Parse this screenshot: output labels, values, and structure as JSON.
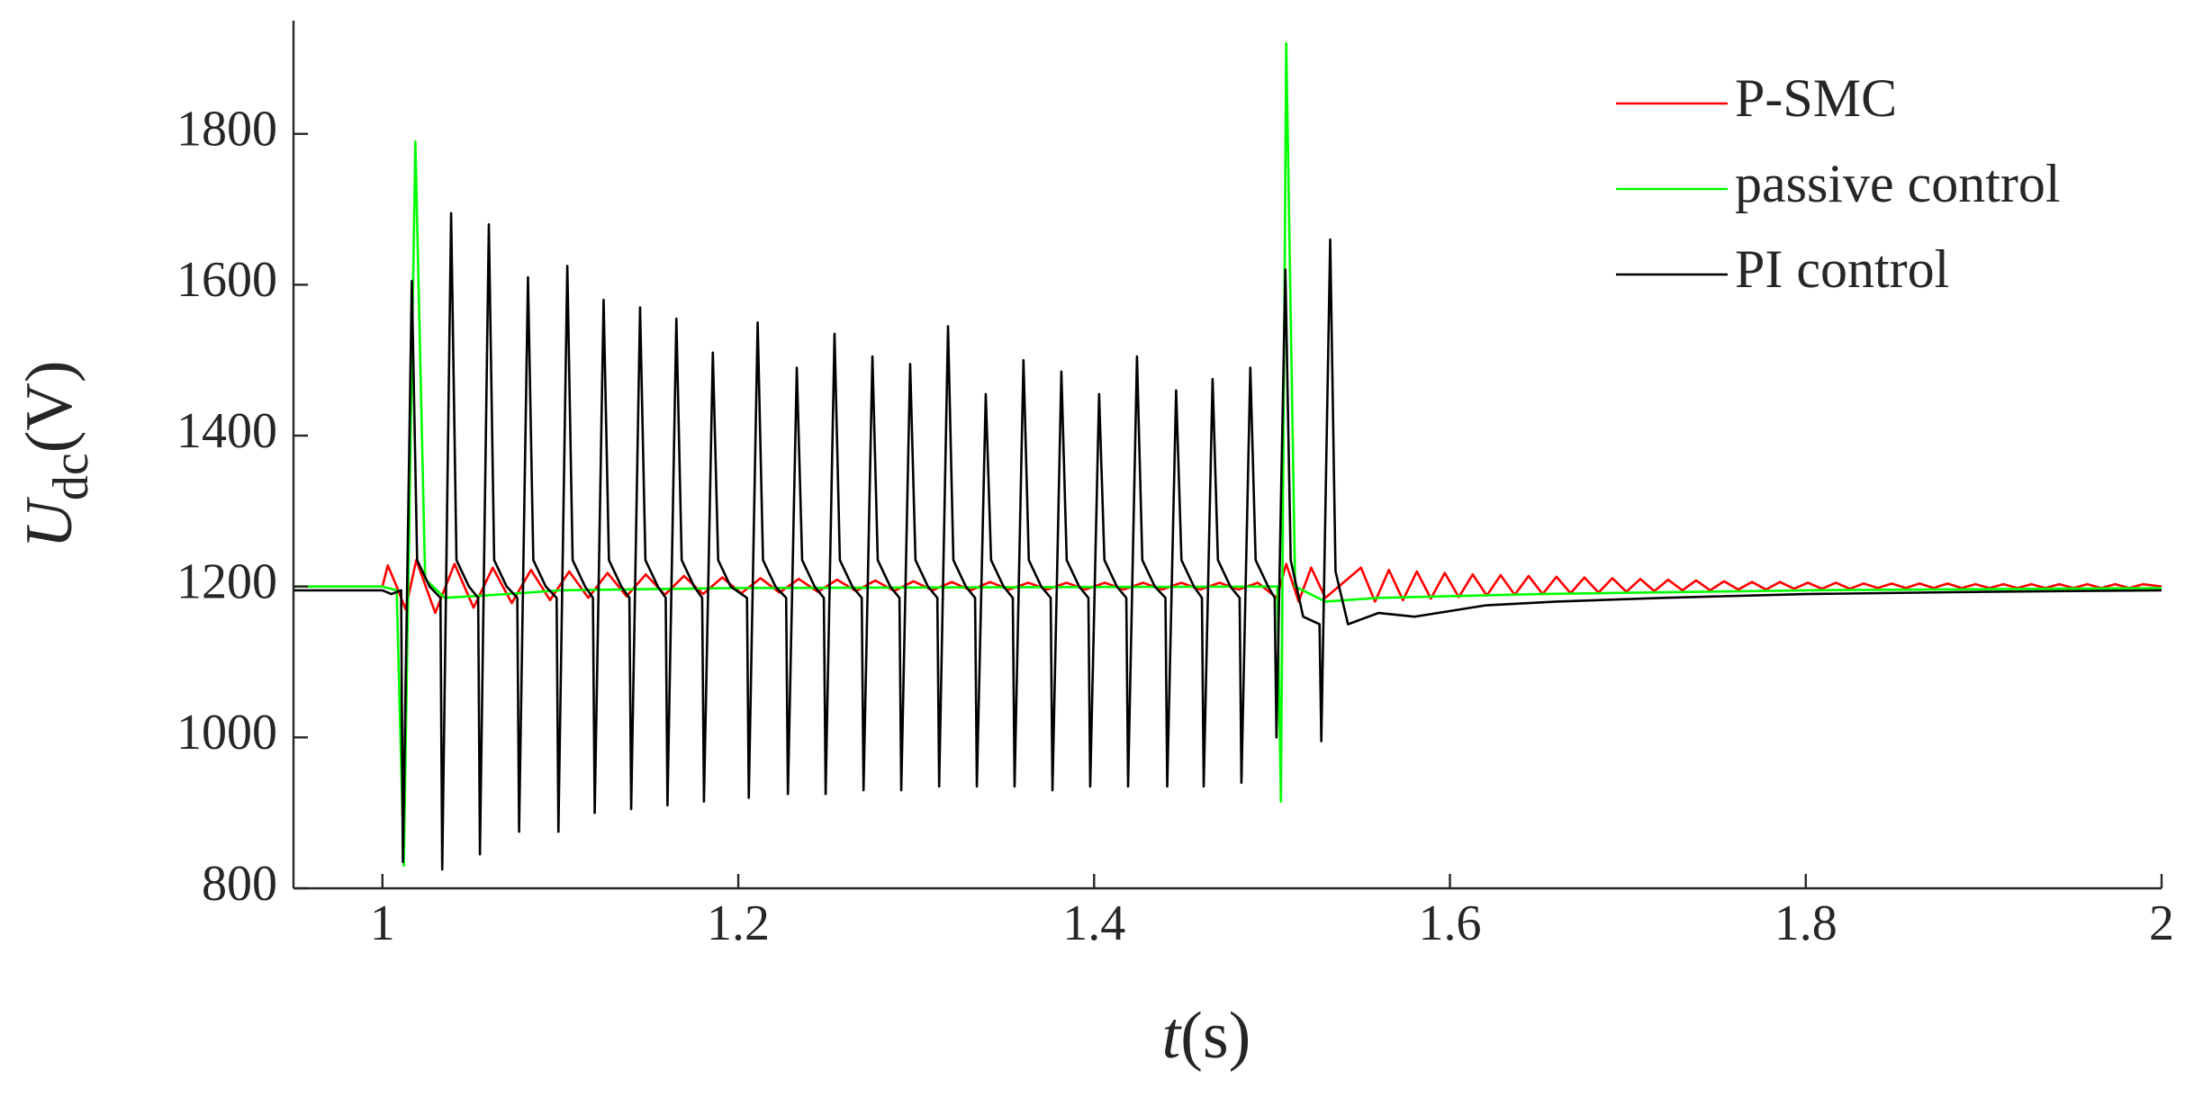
{
  "chart_data": {
    "type": "line",
    "xlabel": {
      "symbol": "t",
      "unit": "(s)"
    },
    "ylabel": {
      "symbol": "U",
      "subscript": "dc",
      "unit": "(V)"
    },
    "xlim": [
      0.95,
      2
    ],
    "ylim": [
      800,
      1950
    ],
    "xticks": [
      1,
      1.2,
      1.4,
      1.6,
      1.8,
      2
    ],
    "yticks": [
      800,
      1000,
      1200,
      1400,
      1600,
      1800
    ],
    "grid": false,
    "legend": "upper right",
    "series": [
      {
        "name": "P-SMC",
        "color": "#ff0000",
        "x": [
          0.95,
          1.0,
          1.003,
          1.008,
          1.013,
          1.019,
          1.0297,
          1.0405,
          1.0512,
          1.062,
          1.0727,
          1.0835,
          1.0942,
          1.105,
          1.1157,
          1.1265,
          1.1372,
          1.148,
          1.1587,
          1.1695,
          1.1802,
          1.191,
          1.2017,
          1.2125,
          1.2232,
          1.234,
          1.2447,
          1.2555,
          1.2662,
          1.277,
          1.2877,
          1.2985,
          1.3092,
          1.32,
          1.3307,
          1.3415,
          1.3522,
          1.363,
          1.3737,
          1.3845,
          1.3952,
          1.406,
          1.4167,
          1.4275,
          1.4382,
          1.449,
          1.4597,
          1.4705,
          1.4812,
          1.492,
          1.5027,
          1.508,
          1.515,
          1.522,
          1.53,
          1.55,
          1.5579,
          1.5657,
          1.5736,
          1.5814,
          1.5893,
          1.5971,
          1.605,
          1.6128,
          1.6207,
          1.6285,
          1.6364,
          1.6442,
          1.6521,
          1.6599,
          1.6678,
          1.6756,
          1.6835,
          1.6913,
          1.6992,
          1.707,
          1.7149,
          1.7227,
          1.7306,
          1.7384,
          1.7463,
          1.7541,
          1.762,
          1.7698,
          1.7777,
          1.7855,
          1.7934,
          1.8012,
          1.8091,
          1.8169,
          1.8248,
          1.8326,
          1.8405,
          1.8483,
          1.8562,
          1.864,
          1.8719,
          1.8797,
          1.8876,
          1.8954,
          1.9033,
          1.9111,
          1.919,
          1.9268,
          1.9347,
          1.9425,
          1.9504,
          1.9582,
          1.9661,
          1.9739,
          1.9818,
          1.9896,
          2.0
        ],
        "values": [
          1200,
          1200,
          1228,
          1200,
          1170,
          1235,
          1165,
          1230,
          1172,
          1225,
          1178,
          1222,
          1182,
          1220,
          1185,
          1218,
          1187,
          1216,
          1189,
          1214,
          1190,
          1212,
          1191,
          1211,
          1192,
          1210,
          1193,
          1209,
          1194,
          1208,
          1194,
          1207,
          1195,
          1206,
          1195,
          1206,
          1196,
          1205,
          1196,
          1205,
          1196,
          1205,
          1196,
          1205,
          1196,
          1205,
          1196,
          1205,
          1196,
          1205,
          1185,
          1230,
          1180,
          1225,
          1185,
          1225,
          1180,
          1222,
          1182,
          1220,
          1184,
          1218,
          1186,
          1216,
          1188,
          1215,
          1189,
          1214,
          1190,
          1213,
          1191,
          1212,
          1192,
          1211,
          1193,
          1210,
          1194,
          1209,
          1195,
          1208,
          1195,
          1207,
          1196,
          1206,
          1196,
          1206,
          1197,
          1205,
          1197,
          1205,
          1197,
          1204,
          1198,
          1204,
          1198,
          1204,
          1198,
          1204,
          1198,
          1203,
          1198,
          1203,
          1198,
          1203,
          1198,
          1203,
          1198,
          1203,
          1198,
          1203,
          1198,
          1203,
          1200
        ]
      },
      {
        "name": "passive control",
        "color": "#00ff00",
        "x": [
          0.95,
          1.0,
          1.008,
          1.012,
          1.0185,
          1.024,
          1.035,
          1.07,
          1.1,
          1.2,
          1.503,
          1.505,
          1.508,
          1.513,
          1.53,
          1.56,
          1.65,
          1.8,
          2.0
        ],
        "values": [
          1200,
          1200,
          1195,
          830,
          1790,
          1210,
          1185,
          1190,
          1195,
          1198,
          1200,
          915,
          1920,
          1200,
          1180,
          1185,
          1190,
          1195,
          1198
        ]
      },
      {
        "name": "PI control",
        "color": "#000000",
        "x": [
          0.95,
          1.0,
          1.005,
          1.0105,
          1.0115,
          1.0165,
          1.0195,
          1.0265,
          1.0326,
          1.0336,
          1.0386,
          1.0416,
          1.0486,
          1.0538,
          1.0548,
          1.0598,
          1.0628,
          1.0698,
          1.0758,
          1.0768,
          1.0818,
          1.0848,
          1.0918,
          1.0979,
          1.0989,
          1.1039,
          1.1069,
          1.1139,
          1.1183,
          1.1193,
          1.1243,
          1.1273,
          1.1343,
          1.1388,
          1.1398,
          1.1448,
          1.1478,
          1.1548,
          1.1592,
          1.1602,
          1.1652,
          1.1682,
          1.1752,
          1.1797,
          1.1807,
          1.1857,
          1.1887,
          1.1957,
          1.2049,
          1.2059,
          1.2109,
          1.2139,
          1.2209,
          1.2269,
          1.2279,
          1.2329,
          1.2359,
          1.2429,
          1.2481,
          1.2491,
          1.2541,
          1.2571,
          1.2641,
          1.2694,
          1.2704,
          1.2754,
          1.2784,
          1.2854,
          1.2906,
          1.2916,
          1.2966,
          1.2996,
          1.3066,
          1.3119,
          1.3129,
          1.3179,
          1.3209,
          1.3279,
          1.3331,
          1.3341,
          1.3391,
          1.3421,
          1.3491,
          1.3543,
          1.3553,
          1.3603,
          1.3633,
          1.3703,
          1.3756,
          1.3766,
          1.3816,
          1.3846,
          1.3916,
          1.3968,
          1.3978,
          1.4028,
          1.4058,
          1.4128,
          1.4181,
          1.4191,
          1.4241,
          1.4271,
          1.4341,
          1.4401,
          1.4411,
          1.4461,
          1.4491,
          1.4561,
          1.4606,
          1.4616,
          1.4666,
          1.4696,
          1.4766,
          1.4818,
          1.4828,
          1.4878,
          1.4908,
          1.4978,
          1.5015,
          1.5025,
          1.5075,
          1.5105,
          1.5175,
          1.5267,
          1.5277,
          1.5327,
          1.5357,
          1.5427,
          1.56,
          1.58,
          1.62,
          1.66,
          1.72,
          1.8,
          1.9,
          2.0
        ],
        "values": [
          1195,
          1195,
          1190,
          1195,
          835,
          1605,
          1235,
          1200,
          1185,
          825,
          1695,
          1235,
          1200,
          1185,
          845,
          1680,
          1235,
          1200,
          1185,
          875,
          1610,
          1235,
          1200,
          1185,
          875,
          1625,
          1235,
          1200,
          1185,
          900,
          1580,
          1235,
          1200,
          1185,
          905,
          1570,
          1235,
          1200,
          1185,
          910,
          1555,
          1235,
          1200,
          1185,
          915,
          1510,
          1235,
          1200,
          1185,
          920,
          1550,
          1235,
          1200,
          1185,
          925,
          1490,
          1235,
          1200,
          1185,
          925,
          1535,
          1235,
          1200,
          1185,
          930,
          1505,
          1235,
          1200,
          1185,
          930,
          1495,
          1235,
          1200,
          1185,
          935,
          1545,
          1235,
          1200,
          1185,
          935,
          1455,
          1235,
          1200,
          1185,
          935,
          1500,
          1235,
          1200,
          1185,
          930,
          1485,
          1235,
          1200,
          1185,
          935,
          1455,
          1235,
          1200,
          1185,
          935,
          1505,
          1235,
          1200,
          1185,
          935,
          1460,
          1235,
          1200,
          1185,
          935,
          1475,
          1235,
          1200,
          1185,
          940,
          1490,
          1235,
          1200,
          1185,
          1000,
          1620,
          1235,
          1160,
          1150,
          995,
          1660,
          1220,
          1150,
          1165,
          1160,
          1175,
          1180,
          1185,
          1190,
          1193,
          1195
        ]
      }
    ]
  }
}
